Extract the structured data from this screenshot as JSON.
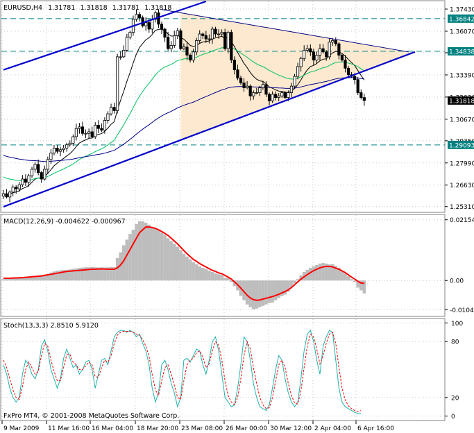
{
  "chart_data": [
    {
      "type": "candlestick",
      "title": "EURUSD,H4",
      "ohlc_readout": [
        "1.31781",
        "1.31818",
        "1.31781",
        "1.31818"
      ],
      "ylim": [
        1.25,
        1.379
      ],
      "y_ticks": [
        "1.37430",
        "1.36070",
        "1.34750",
        "1.33390",
        "1.32030",
        "1.30670",
        "1.29350",
        "1.27990",
        "1.26630",
        "1.25310"
      ],
      "x_ticks": [
        "9 Mar 2009",
        "11 Mar 16:00",
        "16 Mar 04:00",
        "18 Mar 20:00",
        "23 Mar 08:00",
        "26 Mar 00:00",
        "30 Mar 12:00",
        "2 Apr 04:00",
        "6 Apr 16:00"
      ],
      "price_badges": [
        {
          "label": "1.36842",
          "value": 1.36842,
          "type": "level"
        },
        {
          "label": "1.34838",
          "value": 1.34838,
          "type": "level"
        },
        {
          "label": "1.31818",
          "value": 1.31818,
          "type": "current"
        },
        {
          "label": "1.29093",
          "value": 1.29093,
          "type": "level"
        }
      ],
      "horizontal_levels": [
        1.36842,
        1.34838,
        1.29093
      ],
      "close_series": [
        1.261,
        1.259,
        1.262,
        1.265,
        1.264,
        1.2665,
        1.27,
        1.268,
        1.272,
        1.276,
        1.279,
        1.274,
        1.27,
        1.276,
        1.282,
        1.286,
        1.289,
        1.287,
        1.288,
        1.289,
        1.291,
        1.292,
        1.296,
        1.301,
        1.302,
        1.298,
        1.298,
        1.299,
        1.296,
        1.303,
        1.301,
        1.3,
        1.306,
        1.31,
        1.314,
        1.312,
        1.345,
        1.345,
        1.349,
        1.357,
        1.36,
        1.368,
        1.371,
        1.369,
        1.364,
        1.366,
        1.362,
        1.368,
        1.372,
        1.365,
        1.362,
        1.357,
        1.35,
        1.352,
        1.358,
        1.361,
        1.35,
        1.351,
        1.346,
        1.343,
        1.348,
        1.355,
        1.359,
        1.358,
        1.356,
        1.356,
        1.362,
        1.359,
        1.359,
        1.36,
        1.35,
        1.36,
        1.343,
        1.337,
        1.332,
        1.329,
        1.326,
        1.327,
        1.321,
        1.323,
        1.323,
        1.326,
        1.328,
        1.322,
        1.318,
        1.322,
        1.32,
        1.321,
        1.323,
        1.32,
        1.323,
        1.327,
        1.333,
        1.339,
        1.344,
        1.349,
        1.35,
        1.348,
        1.343,
        1.346,
        1.35,
        1.348,
        1.345,
        1.354,
        1.355,
        1.353,
        1.346,
        1.343,
        1.338,
        1.334,
        1.333,
        1.331,
        1.323,
        1.32,
        1.3182
      ],
      "moving_averages": [
        {
          "color": "#000000",
          "shape": "fast trailing average (black)"
        },
        {
          "color": "#00c060",
          "shape": "medium trailing average (green)"
        },
        {
          "color": "#00008b",
          "shape": "slow trailing average (navy)"
        }
      ],
      "trendlines": [
        {
          "color": "#0000cc",
          "from": {
            "bar": 0,
            "price": 1.337
          },
          "to": {
            "bar": 64,
            "price": 1.379
          }
        },
        {
          "color": "#0000cc",
          "from": {
            "bar": 0,
            "price": 1.253
          },
          "to": {
            "bar": 130,
            "price": 1.348
          }
        },
        {
          "color": "#000080",
          "from": {
            "bar": 50,
            "price": 1.374
          },
          "to": {
            "bar": 128,
            "price": 1.348
          }
        }
      ],
      "triangle_fill": "#fde9cf"
    },
    {
      "type": "line+histogram",
      "title": "MACD(12,26,9) -0.004622 -0.000967",
      "y_ticks": [
        "0.021545",
        "0.00",
        "-0.010408"
      ],
      "ylim": [
        -0.0125,
        0.0232
      ],
      "histogram_color": "#bdbdbd",
      "signal_color": "#ff0000",
      "histogram": [
        0.0005,
        0.0007,
        0.0008,
        0.0009,
        0.001,
        0.0012,
        0.0012,
        0.0014,
        0.0015,
        0.0016,
        0.0017,
        0.0018,
        0.0019,
        0.0021,
        0.0024,
        0.0028,
        0.0032,
        0.0035,
        0.0036,
        0.0037,
        0.0038,
        0.0039,
        0.0041,
        0.0043,
        0.0045,
        0.0046,
        0.0047,
        0.0047,
        0.0048,
        0.0047,
        0.0046,
        0.0047,
        0.0046,
        0.0047,
        0.0048,
        0.0047,
        0.008,
        0.01,
        0.0125,
        0.0145,
        0.0165,
        0.018,
        0.02,
        0.021,
        0.021,
        0.0205,
        0.0198,
        0.019,
        0.0185,
        0.0178,
        0.017,
        0.0162,
        0.015,
        0.014,
        0.013,
        0.012,
        0.0108,
        0.0095,
        0.0085,
        0.0075,
        0.0065,
        0.0058,
        0.005,
        0.0045,
        0.004,
        0.0035,
        0.003,
        0.0025,
        0.0022,
        0.002,
        0.001,
        0.001,
        -0.0005,
        -0.002,
        -0.0035,
        -0.0055,
        -0.007,
        -0.0085,
        -0.0095,
        -0.0102,
        -0.01,
        -0.0095,
        -0.009,
        -0.0085,
        -0.008,
        -0.0078,
        -0.007,
        -0.0062,
        -0.0055,
        -0.005,
        -0.004,
        -0.0025,
        -0.001,
        0.0005,
        0.0018,
        0.003,
        0.0038,
        0.0045,
        0.005,
        0.0055,
        0.006,
        0.0062,
        0.006,
        0.0057,
        0.0058,
        0.0052,
        0.0045,
        0.0035,
        0.0025,
        0.0015,
        0.0005,
        -0.0005,
        -0.0025,
        -0.0035,
        -0.0046
      ],
      "signal": [
        0.0008,
        0.0008,
        0.0008,
        0.0009,
        0.0009,
        0.001,
        0.001,
        0.0011,
        0.0012,
        0.0013,
        0.0014,
        0.0015,
        0.0016,
        0.0018,
        0.002,
        0.0022,
        0.0024,
        0.0026,
        0.0028,
        0.003,
        0.0032,
        0.0033,
        0.0034,
        0.0035,
        0.0036,
        0.0037,
        0.0038,
        0.0039,
        0.004,
        0.004,
        0.0041,
        0.0041,
        0.0041,
        0.004,
        0.004,
        0.004,
        0.0045,
        0.0055,
        0.007,
        0.009,
        0.011,
        0.013,
        0.015,
        0.017,
        0.018,
        0.019,
        0.019,
        0.0188,
        0.0185,
        0.018,
        0.0174,
        0.0167,
        0.016,
        0.015,
        0.014,
        0.013,
        0.0118,
        0.0106,
        0.0095,
        0.0085,
        0.0075,
        0.0068,
        0.006,
        0.0054,
        0.0048,
        0.0042,
        0.0036,
        0.0032,
        0.0027,
        0.0024,
        0.0018,
        0.0012,
        0.0005,
        -0.0005,
        -0.0015,
        -0.0027,
        -0.004,
        -0.0052,
        -0.0062,
        -0.0068,
        -0.007,
        -0.0069,
        -0.0066,
        -0.0063,
        -0.006,
        -0.0057,
        -0.0053,
        -0.0049,
        -0.0044,
        -0.0039,
        -0.0033,
        -0.0025,
        -0.0015,
        -0.0005,
        0.0005,
        0.0013,
        0.0021,
        0.0028,
        0.0035,
        0.004,
        0.0045,
        0.0048,
        0.005,
        0.005,
        0.0048,
        0.0044,
        0.004,
        0.0034,
        0.0028,
        0.002,
        0.0012,
        0.0005,
        -0.0003,
        -0.0009,
        -0.001
      ]
    },
    {
      "type": "line",
      "title": "Stoch(13,3,3) 2.8510 5.9120",
      "y_ticks": [
        "100",
        "80",
        "20",
        "0"
      ],
      "ylim": [
        0,
        100
      ],
      "main_color": "#20b2aa",
      "signal_color": "#ff0000",
      "main": [
        55,
        45,
        30,
        20,
        15,
        20,
        45,
        60,
        55,
        45,
        40,
        50,
        75,
        82,
        70,
        50,
        40,
        30,
        40,
        62,
        72,
        62,
        52,
        55,
        45,
        50,
        58,
        60,
        50,
        30,
        45,
        60,
        62,
        55,
        70,
        85,
        90,
        92,
        92,
        90,
        92,
        90,
        85,
        88,
        78,
        70,
        55,
        30,
        15,
        25,
        55,
        60,
        50,
        35,
        25,
        10,
        20,
        60,
        62,
        58,
        65,
        72,
        70,
        55,
        45,
        60,
        80,
        85,
        70,
        45,
        20,
        15,
        10,
        12,
        30,
        55,
        85,
        80,
        60,
        35,
        20,
        10,
        8,
        6,
        12,
        30,
        50,
        65,
        60,
        40,
        25,
        15,
        10,
        15,
        40,
        70,
        88,
        92,
        80,
        60,
        45,
        75,
        85,
        92,
        90,
        60,
        30,
        15,
        10,
        8,
        6,
        4,
        3,
        2.85
      ],
      "signal": [
        60,
        52,
        40,
        28,
        20,
        18,
        32,
        50,
        58,
        52,
        45,
        48,
        65,
        78,
        75,
        60,
        48,
        38,
        38,
        52,
        66,
        66,
        58,
        55,
        50,
        50,
        54,
        58,
        55,
        42,
        42,
        52,
        60,
        58,
        65,
        78,
        87,
        90,
        91,
        91,
        91,
        90,
        88,
        87,
        82,
        75,
        64,
        45,
        28,
        22,
        38,
        52,
        55,
        45,
        33,
        20,
        18,
        38,
        55,
        60,
        62,
        68,
        70,
        63,
        52,
        56,
        70,
        80,
        76,
        60,
        38,
        22,
        15,
        12,
        20,
        40,
        65,
        80,
        72,
        52,
        35,
        20,
        12,
        8,
        9,
        20,
        38,
        55,
        60,
        52,
        35,
        22,
        14,
        13,
        27,
        52,
        75,
        88,
        85,
        72,
        56,
        65,
        78,
        88,
        90,
        78,
        52,
        30,
        17,
        11,
        8,
        6,
        5,
        5.912
      ]
    }
  ],
  "watermark": "FxPro MT4, © 2001-2008 MetaQuotes Software Corp.",
  "colors": {
    "background": "#ffffff",
    "grid": "#c8c8c8",
    "frame": "#808080",
    "level_line": "#008080",
    "badge_level": "#008080",
    "badge_current": "#000000"
  }
}
